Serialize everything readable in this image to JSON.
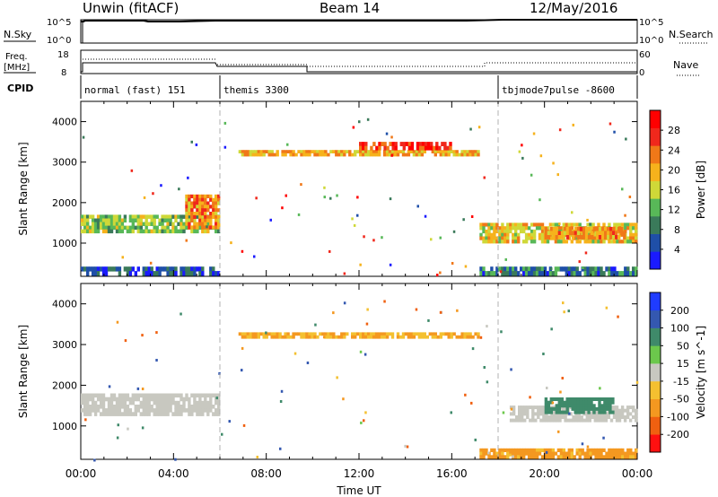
{
  "header": {
    "station": "Unwin (fitACF)",
    "beam": "Beam 14",
    "date": "12/May/2016"
  },
  "panels": {
    "nsky_label": "N.Sky",
    "nsearch_label": "N.Search",
    "nsky_ticks": [
      "10^5",
      "10^0"
    ],
    "freq_label_top": "Freq.",
    "freq_label_bottom": "[MHz]",
    "freq_ticks": [
      "18",
      "8"
    ],
    "nave_label": "Nave",
    "nave_ticks": [
      "60",
      "0"
    ],
    "cpid_label": "CPID",
    "cpid_segments": [
      {
        "start": 0,
        "end": 6,
        "label": "normal (fast) 151"
      },
      {
        "start": 6,
        "end": 18,
        "label": "themis 3300"
      },
      {
        "start": 18,
        "end": 24,
        "label": "tbjmode7pulse -8600"
      }
    ]
  },
  "colors": {
    "power_scale": [
      "#1a1aff",
      "#1f4fa8",
      "#3a7a5a",
      "#58b858",
      "#cfd838",
      "#f6b21c",
      "#f07818",
      "#f0281c",
      "#ff0000"
    ],
    "velocity_scale": [
      "#1f3cff",
      "#3458b0",
      "#3f8a6a",
      "#6cc84c",
      "#c8c8c0",
      "#f4c030",
      "#f49820",
      "#f06010",
      "#ff1010"
    ],
    "ground_scatter": "#c8c8c0"
  },
  "chart_data": [
    {
      "type": "heatmap",
      "title": "",
      "xlabel": "Time UT",
      "ylabel": "Slant Range [km]",
      "xlim": [
        0,
        24
      ],
      "ylim": [
        180,
        4500
      ],
      "x_ticks": [
        "00:00",
        "04:00",
        "08:00",
        "12:00",
        "16:00",
        "20:00",
        "00:00"
      ],
      "y_ticks": [
        1000,
        2000,
        3000,
        4000
      ],
      "colorbar_label": "Power [dB]",
      "colorbar_ticks": [
        4,
        8,
        12,
        16,
        20,
        24,
        28
      ],
      "colorbar_range": [
        0,
        32
      ],
      "regions": [
        {
          "t": [
            0.0,
            6.0
          ],
          "r": [
            1250,
            1700
          ],
          "value": 14
        },
        {
          "t": [
            4.5,
            6.0
          ],
          "r": [
            1350,
            2200
          ],
          "value": 22
        },
        {
          "t": [
            0.0,
            6.0
          ],
          "r": [
            200,
            420
          ],
          "value": 6
        },
        {
          "t": [
            6.8,
            17.2
          ],
          "r": [
            3150,
            3300
          ],
          "value": 20
        },
        {
          "t": [
            12.0,
            16.0
          ],
          "r": [
            3300,
            3500
          ],
          "value": 28
        },
        {
          "t": [
            17.2,
            24.0
          ],
          "r": [
            1000,
            1500
          ],
          "value": 18
        },
        {
          "t": [
            20.0,
            23.5
          ],
          "r": [
            1100,
            1400
          ],
          "value": 22
        },
        {
          "t": [
            17.2,
            24.0
          ],
          "r": [
            200,
            420
          ],
          "value": 8
        }
      ]
    },
    {
      "type": "heatmap",
      "title": "",
      "xlabel": "Time UT",
      "ylabel": "Slant Range [km]",
      "xlim": [
        0,
        24
      ],
      "ylim": [
        180,
        4500
      ],
      "x_ticks": [
        "00:00",
        "04:00",
        "08:00",
        "12:00",
        "16:00",
        "20:00",
        "00:00"
      ],
      "y_ticks": [
        1000,
        2000,
        3000,
        4000
      ],
      "colorbar_label": "Velocity [m s^-1]",
      "colorbar_ticks": [
        200,
        100,
        50,
        15,
        -15,
        -50,
        -100,
        -200
      ],
      "regions": [
        {
          "t": [
            0.0,
            6.0
          ],
          "r": [
            1250,
            1800
          ],
          "value": 0
        },
        {
          "t": [
            6.8,
            17.2
          ],
          "r": [
            3150,
            3300
          ],
          "value": -50
        },
        {
          "t": [
            17.2,
            24.0
          ],
          "r": [
            200,
            450
          ],
          "value": -60
        },
        {
          "t": [
            18.5,
            24.0
          ],
          "r": [
            1100,
            1500
          ],
          "value": 0
        },
        {
          "t": [
            20.0,
            23.0
          ],
          "r": [
            1300,
            1700
          ],
          "value": 50
        }
      ]
    }
  ]
}
